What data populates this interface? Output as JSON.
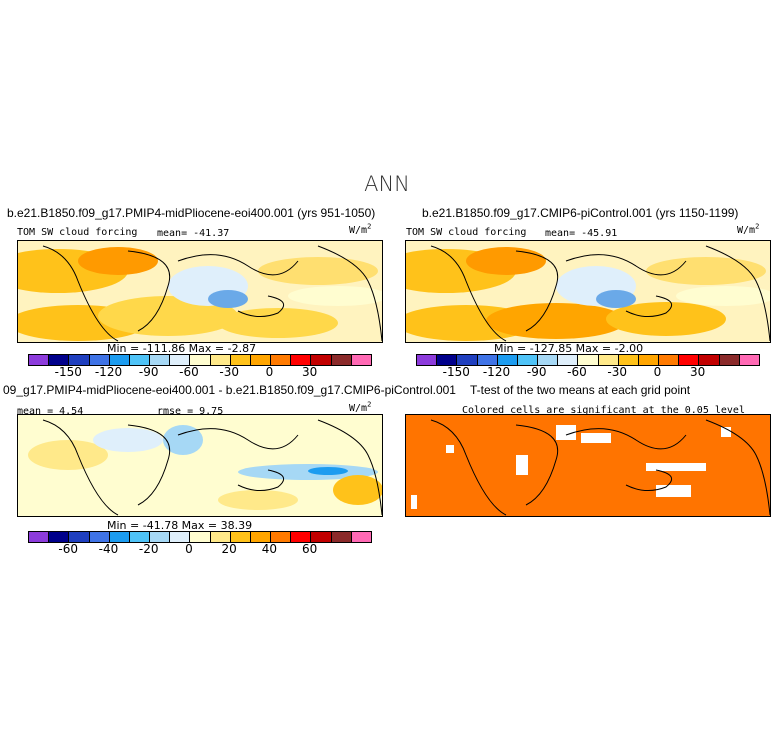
{
  "header": {
    "title": "ANN"
  },
  "panels": [
    {
      "title": "b.e21.B1850.f09_g17.PMIP4-midPliocene-eoi400.001 (yrs 951-1050)",
      "label": "TOM SW cloud forcing",
      "mean": "mean= -41.37",
      "units": "W/m",
      "units_sup": "2",
      "minmax": "Min = -111.86  Max =  -2.87"
    },
    {
      "title": "b.e21.B1850.f09_g17.CMIP6-piControl.001 (yrs 1150-1199)",
      "label": "TOM SW cloud forcing",
      "mean": "mean= -45.91",
      "units": "W/m",
      "units_sup": "2",
      "minmax": "Min = -127.85  Max =  -2.00"
    },
    {
      "title": "09_g17.PMIP4-midPliocene-eoi400.001 - b.e21.B1850.f09_g17.CMIP6-piControl.001",
      "mean": "mean =  4.54",
      "rmse": "rmse =  9.75",
      "units": "W/m",
      "units_sup": "2",
      "minmax": "Min = -41.78  Max =  38.39"
    },
    {
      "title": "T-test of the two means at each grid point",
      "note": "Colored cells are significant at the 0.05 level"
    }
  ],
  "colorbar_abs": {
    "colors": [
      "#8c3bdb",
      "#00008b",
      "#1f3fbf",
      "#3f73e6",
      "#1c9cf0",
      "#4fc3f7",
      "#a6d8f5",
      "#dfeffb",
      "#fffdd0",
      "#ffe98a",
      "#ffc21a",
      "#ffa500",
      "#ff7a00",
      "#ff0000",
      "#c20000",
      "#8b2a2a",
      "#ff69b4"
    ],
    "ticks": [
      "-150",
      "-120",
      "-90",
      "-60",
      "-30",
      "0",
      "30"
    ]
  },
  "colorbar_diff": {
    "colors": [
      "#8c3bdb",
      "#00008b",
      "#1f3fbf",
      "#3f73e6",
      "#1c9cf0",
      "#4fc3f7",
      "#a6d8f5",
      "#dfeffb",
      "#fffdd0",
      "#ffe98a",
      "#ffc21a",
      "#ffa500",
      "#ff7a00",
      "#ff0000",
      "#c20000",
      "#8b2a2a",
      "#ff69b4"
    ],
    "ticks": [
      "-60",
      "-40",
      "-20",
      "0",
      "20",
      "40",
      "60"
    ]
  },
  "colors": {
    "significance": "#ff7400",
    "background": "#ffffff"
  }
}
